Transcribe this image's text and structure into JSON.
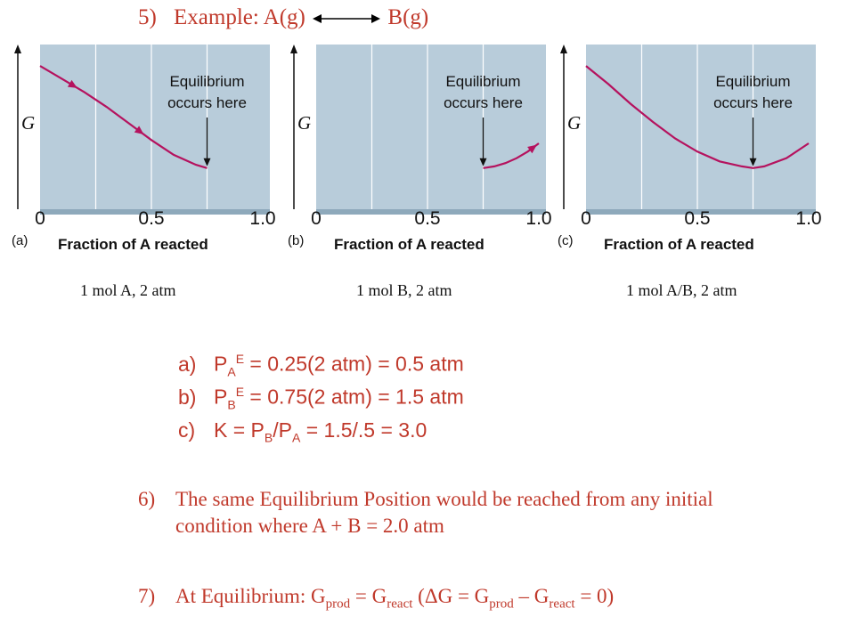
{
  "heading": {
    "number": "5)",
    "text_left": "Example:  A(g)",
    "text_right": "B(g)"
  },
  "colors": {
    "text_accent": "#c0392b",
    "plot_bg": "#b8ccda",
    "plot_border": "#8ea9bb",
    "curve": "#b5125e"
  },
  "axis_y_label": "G",
  "axis_x_label": "Fraction of A reacted",
  "x_ticks": [
    "0",
    "0.5",
    "1.0"
  ],
  "annotation_line1": "Equilibrium",
  "annotation_line2": "occurs here",
  "panels": [
    {
      "letter": "(a)",
      "caption": "1 mol A, 2 atm"
    },
    {
      "letter": "(b)",
      "caption": "1 mol B, 2 atm"
    },
    {
      "letter": "(c)",
      "caption": "1 mol A/B, 2 atm"
    }
  ],
  "chart_data": [
    {
      "type": "line",
      "panel": "(a)",
      "xlabel": "Fraction of A reacted",
      "ylabel": "G",
      "xlim": [
        0,
        1.0
      ],
      "x_ticks": [
        0,
        0.5,
        1.0
      ],
      "x": [
        0.0,
        0.1,
        0.2,
        0.3,
        0.4,
        0.5,
        0.6,
        0.7,
        0.75
      ],
      "y": [
        0.87,
        0.79,
        0.71,
        0.62,
        0.52,
        0.42,
        0.33,
        0.27,
        0.25
      ],
      "annotation": "Equilibrium occurs here",
      "annotation_x": 0.75
    },
    {
      "type": "line",
      "panel": "(b)",
      "xlabel": "Fraction of A reacted",
      "ylabel": "G",
      "xlim": [
        0,
        1.0
      ],
      "x_ticks": [
        0,
        0.5,
        1.0
      ],
      "x": [
        0.75,
        0.8,
        0.85,
        0.9,
        0.95,
        1.0
      ],
      "y": [
        0.25,
        0.26,
        0.28,
        0.31,
        0.35,
        0.4
      ],
      "annotation": "Equilibrium occurs here",
      "annotation_x": 0.75
    },
    {
      "type": "line",
      "panel": "(c)",
      "xlabel": "Fraction of A reacted",
      "ylabel": "G",
      "xlim": [
        0,
        1.0
      ],
      "x_ticks": [
        0,
        0.5,
        1.0
      ],
      "x": [
        0.0,
        0.1,
        0.2,
        0.3,
        0.4,
        0.5,
        0.6,
        0.7,
        0.75,
        0.8,
        0.9,
        1.0
      ],
      "y": [
        0.87,
        0.76,
        0.64,
        0.53,
        0.43,
        0.35,
        0.29,
        0.26,
        0.25,
        0.26,
        0.31,
        0.4
      ],
      "annotation": "Equilibrium occurs here",
      "annotation_x": 0.75
    }
  ],
  "list": [
    {
      "marker": "a)",
      "p": "P",
      "sub": "A",
      "sup": "E",
      "rest": " = 0.25(2 atm) = 0.5 atm"
    },
    {
      "marker": "b)",
      "p": "P",
      "sub": "B",
      "sup": "E",
      "rest": " = 0.75(2 atm) = 1.5 atm"
    },
    {
      "marker": "c)",
      "t1": "K = P",
      "s1": "B",
      "t2": "/P",
      "s2": "A",
      "t3": " = 1.5/.5 = 3.0"
    }
  ],
  "point6": {
    "number": "6)",
    "line1": "The same Equilibrium Position would be reached from any initial",
    "line2": "condition where A + B = 2.0 atm"
  },
  "point7": {
    "number": "7)",
    "t1": "At Equilibrium:  G",
    "s1": "prod",
    "t2": " = G",
    "s2": "react",
    "t3": "   (ΔG = G",
    "s3": "prod",
    "t4": " – G",
    "s4": "react",
    "t5": " = 0)"
  }
}
